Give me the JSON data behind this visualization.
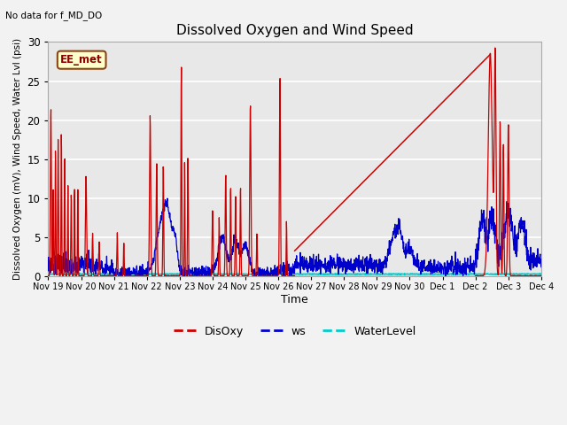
{
  "title": "Dissolved Oxygen and Wind Speed",
  "top_left_text": "No data for f_MD_DO",
  "annotation_box": "EE_met",
  "ylabel": "Dissolved Oxygen (mV), Wind Speed, Water Lvl (psi)",
  "xlabel": "Time",
  "ylim": [
    0,
    30
  ],
  "xlim": [
    0,
    15
  ],
  "fig_facecolor": "#f2f2f2",
  "plot_facecolor": "#e8e8e8",
  "grid_color": "#ffffff",
  "x_tick_labels": [
    "Nov 19",
    "Nov 20",
    "Nov 21",
    "Nov 22",
    "Nov 23",
    "Nov 24",
    "Nov 25",
    "Nov 26",
    "Nov 27",
    "Nov 28",
    "Nov 29",
    "Nov 30",
    "Dec 1",
    "Dec 2",
    "Dec 3",
    "Dec 4"
  ],
  "disoxy_color": "#cc0000",
  "ws_color": "#0000cc",
  "wl_color": "#00cccc",
  "anno_line_x1": 7.5,
  "anno_line_y1": 3.3,
  "anno_line_x2": 13.45,
  "anno_line_y2": 28.4,
  "figsize": [
    6.4,
    4.8
  ],
  "dpi": 100
}
